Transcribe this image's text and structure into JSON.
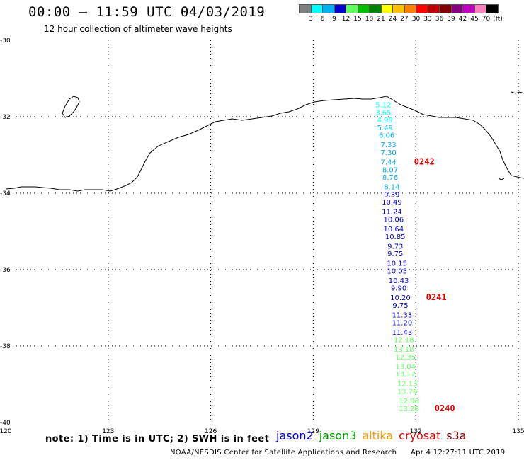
{
  "header": {
    "title": "00:00 – 11:59 UTC 04/03/2019",
    "subtitle": "12 hour collection of altimeter wave heights"
  },
  "color_scale": {
    "labels": [
      "3",
      "6",
      "9",
      "12",
      "15",
      "18",
      "21",
      "24",
      "27",
      "30",
      "33",
      "36",
      "39",
      "42",
      "45",
      "70",
      "(ft)"
    ],
    "colors": [
      "#808080",
      "#00ffff",
      "#00b0f0",
      "#0000d0",
      "#60ff60",
      "#00c000",
      "#008000",
      "#ffff00",
      "#ffc000",
      "#ff8000",
      "#ff0000",
      "#c00000",
      "#800000",
      "#800080",
      "#c000c0",
      "#ff80c0",
      "#000000"
    ]
  },
  "axes": {
    "lon_ticks": [
      "120",
      "123",
      "126",
      "129",
      "132",
      "135"
    ],
    "lat_ticks": [
      "-30",
      "-32",
      "-34",
      "-36",
      "-38",
      "-40"
    ]
  },
  "chart_data": {
    "type": "scatter",
    "lon_range": [
      120,
      135
    ],
    "lat_range": [
      -40,
      -30
    ],
    "points": [
      {
        "value": "5.12",
        "lat": -31.75,
        "lon": 131.05,
        "color": "#00ffff"
      },
      {
        "value": "3.65",
        "lat": -31.95,
        "lon": 131.05,
        "color": "#00ffff"
      },
      {
        "value": "4.99",
        "lat": -32.15,
        "lon": 131.1,
        "color": "#00ffff"
      },
      {
        "value": "5.49",
        "lat": -32.35,
        "lon": 131.1,
        "color": "#00b0f0"
      },
      {
        "value": "6.06",
        "lat": -32.55,
        "lon": 131.15,
        "color": "#00b0f0"
      },
      {
        "value": "7.33",
        "lat": -32.8,
        "lon": 131.2,
        "color": "#00b0f0"
      },
      {
        "value": "7.30",
        "lat": -33.0,
        "lon": 131.2,
        "color": "#00b0f0"
      },
      {
        "value": "7.44",
        "lat": -33.25,
        "lon": 131.2,
        "color": "#00b0f0"
      },
      {
        "value": "8.07",
        "lat": -33.45,
        "lon": 131.25,
        "color": "#00b0f0"
      },
      {
        "value": "8.76",
        "lat": -33.65,
        "lon": 131.25,
        "color": "#00b0f0"
      },
      {
        "value": "8.14",
        "lat": -33.9,
        "lon": 131.3,
        "color": "#00b0f0"
      },
      {
        "value": "9.39",
        "lat": -34.1,
        "lon": 131.3,
        "color": "#0000d0"
      },
      {
        "value": "10.49",
        "lat": -34.3,
        "lon": 131.3,
        "color": "#0000d0"
      },
      {
        "value": "11.24",
        "lat": -34.55,
        "lon": 131.3,
        "color": "#0000d0"
      },
      {
        "value": "10.06",
        "lat": -34.75,
        "lon": 131.35,
        "color": "#0000d0"
      },
      {
        "value": "10.64",
        "lat": -35.0,
        "lon": 131.35,
        "color": "#0000d0"
      },
      {
        "value": "10.85",
        "lat": -35.2,
        "lon": 131.4,
        "color": "#0000d0"
      },
      {
        "value": "9.73",
        "lat": -35.45,
        "lon": 131.4,
        "color": "#0000d0"
      },
      {
        "value": "9.75",
        "lat": -35.65,
        "lon": 131.4,
        "color": "#0000d0"
      },
      {
        "value": "10.15",
        "lat": -35.9,
        "lon": 131.45,
        "color": "#0000d0"
      },
      {
        "value": "10.05",
        "lat": -36.1,
        "lon": 131.45,
        "color": "#0000d0"
      },
      {
        "value": "10.43",
        "lat": -36.35,
        "lon": 131.5,
        "color": "#0000d0"
      },
      {
        "value": "9.90",
        "lat": -36.55,
        "lon": 131.5,
        "color": "#0000d0"
      },
      {
        "value": "10.20",
        "lat": -36.8,
        "lon": 131.55,
        "color": "#0000d0"
      },
      {
        "value": "9.75",
        "lat": -37.0,
        "lon": 131.55,
        "color": "#0000d0"
      },
      {
        "value": "11.33",
        "lat": -37.25,
        "lon": 131.6,
        "color": "#0000d0"
      },
      {
        "value": "11.20",
        "lat": -37.45,
        "lon": 131.6,
        "color": "#0000d0"
      },
      {
        "value": "11.43",
        "lat": -37.7,
        "lon": 131.6,
        "color": "#0000d0"
      },
      {
        "value": "12.18",
        "lat": -37.9,
        "lon": 131.65,
        "color": "#60ff60"
      },
      {
        "value": "13.18",
        "lat": -38.15,
        "lon": 131.65,
        "color": "#60ff60"
      },
      {
        "value": "12.35",
        "lat": -38.35,
        "lon": 131.7,
        "color": "#60ff60"
      },
      {
        "value": "13.04",
        "lat": -38.6,
        "lon": 131.7,
        "color": "#60ff60"
      },
      {
        "value": "13.12",
        "lat": -38.8,
        "lon": 131.7,
        "color": "#60ff60"
      },
      {
        "value": "12.13",
        "lat": -39.05,
        "lon": 131.75,
        "color": "#60ff60"
      },
      {
        "value": "13.76",
        "lat": -39.25,
        "lon": 131.75,
        "color": "#60ff60"
      },
      {
        "value": "12.98",
        "lat": -39.5,
        "lon": 131.8,
        "color": "#60ff60"
      },
      {
        "value": "13.28",
        "lat": -39.7,
        "lon": 131.8,
        "color": "#60ff60"
      }
    ],
    "time_labels": [
      {
        "text": "0242",
        "lat": -33.25,
        "lon": 131.95
      },
      {
        "text": "0241",
        "lat": -36.8,
        "lon": 132.3
      },
      {
        "text": "0240",
        "lat": -39.7,
        "lon": 132.55
      }
    ]
  },
  "footer": {
    "note": "note: 1) Time is in UTC; 2) SWH is in feet",
    "credit": "NOAA/NESDIS Center for Satellite Applications and Research",
    "timestamp": "Apr  4 12:27:11 UTC 2019"
  },
  "legend": [
    {
      "name": "jason2",
      "color": "#0000d0"
    },
    {
      "name": "jason3",
      "color": "#00a000"
    },
    {
      "name": "altika",
      "color": "#ff9900"
    },
    {
      "name": "cryosat",
      "color": "#e00000"
    },
    {
      "name": "s3a",
      "color": "#800000"
    }
  ]
}
